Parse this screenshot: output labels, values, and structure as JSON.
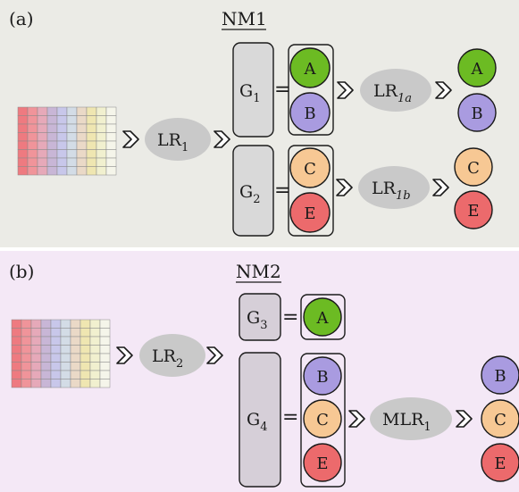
{
  "colors": {
    "panel_a_bg": "#ebebe6",
    "panel_b_bg": "#f4e8f6",
    "node_fill": "#c9c9c9",
    "box_fill": "#d9d9d9",
    "box_fill_b": "#d6cfd8",
    "circle_A": "#6cbb23",
    "circle_B": "#a99be0",
    "circle_C": "#f7c894",
    "circle_E": "#ec6a6c",
    "grid_cols": [
      "#ee7a80",
      "#f0949a",
      "#e6a9b9",
      "#c8b6d6",
      "#c8c7ea",
      "#d3dce6",
      "#ead9c7",
      "#efe6b1",
      "#f1f0cf",
      "#f5f5ea"
    ]
  },
  "panel_a": {
    "label": "(a)",
    "title": "NM1",
    "lr_main": {
      "text": "LR",
      "sub": "1"
    },
    "g1": {
      "text": "G",
      "sub": "1"
    },
    "g2": {
      "text": "G",
      "sub": "2"
    },
    "lr_1a": {
      "text": "LR",
      "sub": "1a"
    },
    "lr_1b": {
      "text": "LR",
      "sub": "1b"
    },
    "g1_members": [
      "A",
      "B"
    ],
    "g2_members": [
      "C",
      "E"
    ],
    "out_1a": [
      "A",
      "B"
    ],
    "out_1b": [
      "C",
      "E"
    ]
  },
  "panel_b": {
    "label": "(b)",
    "title": "NM2",
    "lr_main": {
      "text": "LR",
      "sub": "2"
    },
    "g3": {
      "text": "G",
      "sub": "3"
    },
    "g4": {
      "text": "G",
      "sub": "4"
    },
    "mlr": {
      "text": "MLR",
      "sub": "1"
    },
    "g3_members": [
      "A"
    ],
    "g4_members": [
      "B",
      "C",
      "E"
    ],
    "out_mlr": [
      "B",
      "C",
      "E"
    ]
  },
  "symbols": {
    "equals": "="
  }
}
